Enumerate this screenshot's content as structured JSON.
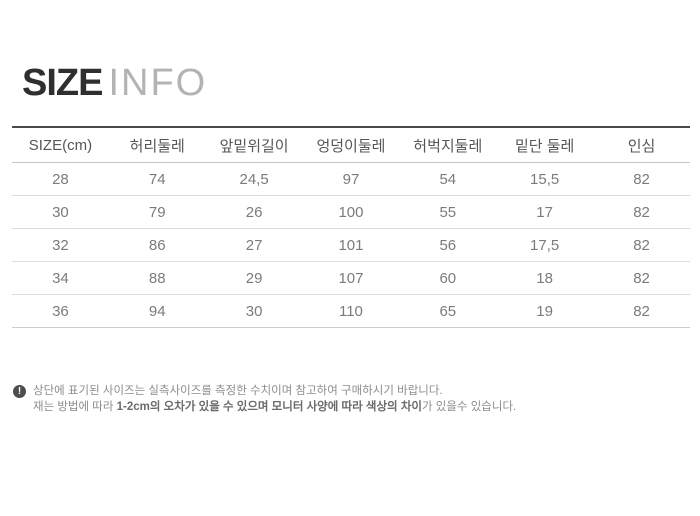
{
  "title": {
    "primary": "SIZE",
    "secondary": "INFO"
  },
  "table": {
    "headers": [
      "SIZE(cm)",
      "허리둘레",
      "앞밑위길이",
      "엉덩이둘레",
      "허벅지둘레",
      "밑단 둘레",
      "인심"
    ],
    "rows": [
      [
        "28",
        "74",
        "24,5",
        "97",
        "54",
        "15,5",
        "82"
      ],
      [
        "30",
        "79",
        "26",
        "100",
        "55",
        "17",
        "82"
      ],
      [
        "32",
        "86",
        "27",
        "101",
        "56",
        "17,5",
        "82"
      ],
      [
        "34",
        "88",
        "29",
        "107",
        "60",
        "18",
        "82"
      ],
      [
        "36",
        "94",
        "30",
        "110",
        "65",
        "19",
        "82"
      ]
    ]
  },
  "notice": {
    "icon": "exclamation-circle-icon",
    "icon_glyph": "!",
    "line1": "상단에 표기된 사이즈는 실측사이즈를 측정한 수치이며 참고하여 구매하시기 바랍니다.",
    "line2_pre": "재는 방법에 따라 ",
    "line2_emph": "1-2cm의 오차가 있을 수 있으며 모니터 사양에 따라 색상의 차이",
    "line2_post": "가 있을수 있습니다."
  },
  "colors": {
    "title_primary": "#2f2f2f",
    "title_secondary": "#b3b3b3",
    "table_top_border": "#4a4a4a",
    "header_text": "#565656",
    "cell_text": "#7b7b7b",
    "row_border": "#dcdcdc",
    "notice_icon_bg": "#4d4d4d",
    "notice_text": "#8d8d8d"
  }
}
